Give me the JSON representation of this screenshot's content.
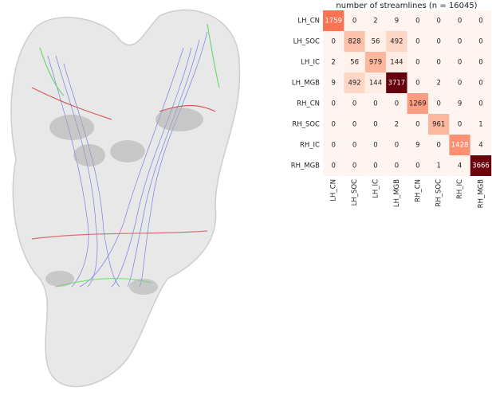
{
  "chart_data": {
    "type": "heatmap",
    "title": "number of streamlines (n = 16045)",
    "rows": [
      "LH_CN",
      "LH_SOC",
      "LH_IC",
      "LH_MGB",
      "RH_CN",
      "RH_SOC",
      "RH_IC",
      "RH_MGB"
    ],
    "columns": [
      "LH_CN",
      "LH_SOC",
      "LH_IC",
      "LH_MGB",
      "RH_CN",
      "RH_SOC",
      "RH_IC",
      "RH_MGB"
    ],
    "values": [
      [
        1759,
        0,
        2,
        9,
        0,
        0,
        0,
        0
      ],
      [
        0,
        828,
        56,
        492,
        0,
        0,
        0,
        0
      ],
      [
        2,
        56,
        979,
        144,
        0,
        0,
        0,
        0
      ],
      [
        9,
        492,
        144,
        3717,
        0,
        2,
        0,
        0
      ],
      [
        0,
        0,
        0,
        0,
        1269,
        0,
        9,
        0
      ],
      [
        0,
        0,
        0,
        2,
        0,
        961,
        0,
        1
      ],
      [
        0,
        0,
        0,
        0,
        9,
        0,
        1428,
        4
      ],
      [
        0,
        0,
        0,
        0,
        0,
        1,
        4,
        3666
      ]
    ],
    "colorscale": [
      "#fff5f0",
      "#fcbba1",
      "#fb6a4a",
      "#cb181d",
      "#67000d"
    ]
  }
}
